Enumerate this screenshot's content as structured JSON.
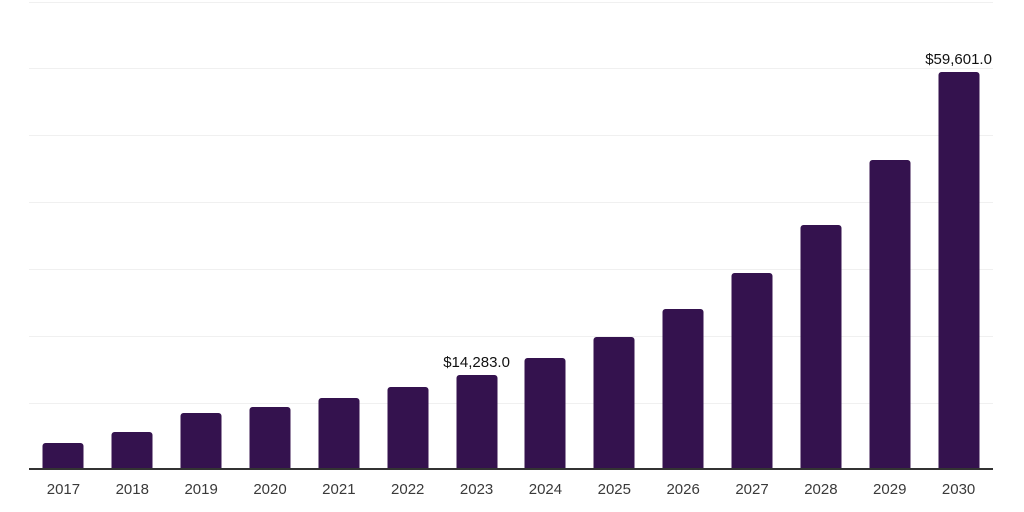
{
  "chart_data": {
    "type": "bar",
    "title": "",
    "xlabel": "",
    "ylabel": "",
    "categories": [
      "2017",
      "2018",
      "2019",
      "2020",
      "2021",
      "2022",
      "2023",
      "2024",
      "2025",
      "2026",
      "2027",
      "2028",
      "2029",
      "2030"
    ],
    "values": [
      4000,
      5700,
      8500,
      9400,
      10800,
      12400,
      14283,
      16700,
      19900,
      24100,
      29500,
      36600,
      46300,
      59601
    ],
    "data_labels": {
      "2023": "$14,283.0",
      "2030": "$59,601.0"
    },
    "ylim": [
      0,
      70000
    ],
    "gridline_step": 10000,
    "grid": "horizontal",
    "y_axis_labels": "none",
    "legend_position": "none",
    "colors": {
      "bar": "#34124E",
      "axis_line": "#333333",
      "gridline": "#f0f0f0",
      "tick_label": "#3a3a3a",
      "data_label": "#111111",
      "background": "#ffffff"
    }
  }
}
